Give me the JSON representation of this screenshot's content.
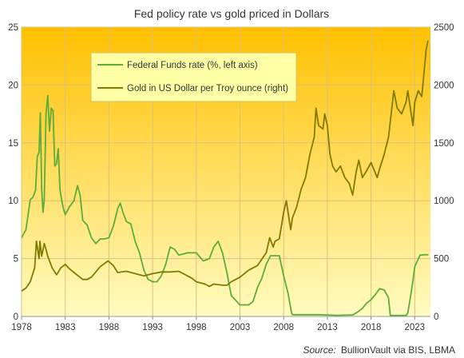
{
  "chart_data": {
    "type": "line",
    "title": "Fed policy rate vs gold priced in Dollars",
    "source_label": "Source:",
    "source_text": "BullionVault via  BIS, LBMA",
    "x_ticks": [
      "1978",
      "1983",
      "1988",
      "1993",
      "1998",
      "2003",
      "2008",
      "2013",
      "2018",
      "2023"
    ],
    "y_left_ticks": [
      "0",
      "5",
      "10",
      "15",
      "20",
      "25"
    ],
    "y_right_ticks": [
      "0",
      "500",
      "1000",
      "1500",
      "2000",
      "2500"
    ],
    "xlim": [
      1978,
      2024.8
    ],
    "ylim_left": [
      0,
      25
    ],
    "ylim_right": [
      0,
      2500
    ],
    "grid": true,
    "legend_position": "top-left",
    "background_gradient": [
      "#ffc000",
      "#fffbc0"
    ],
    "series": [
      {
        "name": "Federal Funds rate (%, left axis)",
        "axis": "left",
        "color": "#5cad3a",
        "x": [
          1978.0,
          1978.5,
          1979.0,
          1979.3,
          1979.6,
          1979.8,
          1980.0,
          1980.15,
          1980.3,
          1980.45,
          1980.6,
          1980.8,
          1981.0,
          1981.2,
          1981.4,
          1981.6,
          1981.8,
          1982.0,
          1982.2,
          1982.4,
          1982.6,
          1982.8,
          1983.0,
          1983.5,
          1984.0,
          1984.4,
          1984.7,
          1985.0,
          1985.5,
          1986.0,
          1986.5,
          1987.0,
          1987.5,
          1988.0,
          1988.5,
          1989.0,
          1989.3,
          1989.6,
          1990.0,
          1990.5,
          1991.0,
          1991.5,
          1992.0,
          1992.5,
          1993.0,
          1993.5,
          1994.0,
          1994.5,
          1995.0,
          1995.5,
          1996.0,
          1997.0,
          1998.0,
          1998.8,
          1999.5,
          2000.0,
          2000.5,
          2001.0,
          2001.5,
          2002.0,
          2003.0,
          2004.0,
          2004.5,
          2005.0,
          2005.5,
          2006.0,
          2006.5,
          2007.0,
          2007.5,
          2008.0,
          2008.5,
          2008.9,
          2009.0,
          2010.0,
          2012.0,
          2014.0,
          2015.9,
          2016.5,
          2017.0,
          2017.5,
          2018.0,
          2018.5,
          2019.0,
          2019.5,
          2020.0,
          2020.2,
          2021.0,
          2022.0,
          2022.2,
          2022.5,
          2022.8,
          2023.0,
          2023.3,
          2023.6,
          2024.0,
          2024.5
        ],
        "values": [
          6.8,
          7.5,
          10.1,
          10.3,
          10.9,
          13.8,
          14.2,
          17.6,
          11.0,
          9.0,
          10.0,
          17.5,
          19.1,
          16.0,
          18.0,
          17.8,
          13.0,
          13.2,
          14.5,
          11.0,
          10.0,
          9.3,
          8.8,
          9.5,
          10.0,
          11.3,
          10.5,
          8.3,
          7.9,
          6.8,
          6.3,
          6.7,
          6.7,
          6.8,
          7.8,
          9.3,
          9.8,
          9.0,
          8.2,
          8.0,
          6.5,
          5.5,
          4.0,
          3.2,
          3.0,
          3.0,
          3.5,
          4.5,
          6.0,
          5.8,
          5.3,
          5.5,
          5.5,
          4.8,
          5.0,
          6.0,
          6.5,
          5.5,
          3.8,
          1.8,
          1.0,
          1.0,
          1.3,
          2.5,
          3.3,
          4.5,
          5.25,
          5.25,
          5.25,
          3.5,
          2.0,
          0.3,
          0.15,
          0.15,
          0.15,
          0.1,
          0.13,
          0.4,
          0.7,
          1.15,
          1.45,
          1.9,
          2.4,
          2.3,
          1.6,
          0.1,
          0.08,
          0.08,
          0.3,
          1.6,
          3.1,
          4.3,
          4.8,
          5.3,
          5.33,
          5.33
        ]
      },
      {
        "name": "Gold in US Dollar per Troy ounce (right)",
        "axis": "right",
        "color": "#807a00",
        "x": [
          1978.0,
          1978.5,
          1979.0,
          1979.5,
          1979.7,
          1980.0,
          1980.1,
          1980.3,
          1980.6,
          1980.8,
          1981.0,
          1981.5,
          1982.0,
          1982.5,
          1983.0,
          1983.5,
          1984.0,
          1984.5,
          1985.0,
          1985.5,
          1986.0,
          1987.0,
          1987.9,
          1988.5,
          1989.0,
          1990.0,
          1991.0,
          1992.0,
          1993.0,
          1993.7,
          1994.0,
          1995.0,
          1996.0,
          1997.0,
          1997.5,
          1998.0,
          1999.0,
          1999.5,
          2000.0,
          2001.0,
          2001.5,
          2002.0,
          2003.0,
          2004.0,
          2005.0,
          2006.0,
          2006.4,
          2006.8,
          2007.0,
          2007.5,
          2008.0,
          2008.3,
          2008.8,
          2009.0,
          2009.5,
          2010.0,
          2010.5,
          2011.0,
          2011.5,
          2011.7,
          2012.0,
          2012.5,
          2012.7,
          2013.0,
          2013.3,
          2013.6,
          2014.0,
          2014.5,
          2015.0,
          2015.5,
          2015.9,
          2016.3,
          2016.6,
          2017.0,
          2017.5,
          2018.0,
          2018.7,
          2019.0,
          2019.5,
          2020.0,
          2020.6,
          2021.0,
          2021.5,
          2022.0,
          2022.2,
          2022.8,
          2023.0,
          2023.4,
          2023.8,
          2024.0,
          2024.3,
          2024.5
        ],
        "values": [
          220,
          245,
          300,
          420,
          650,
          500,
          650,
          520,
          630,
          580,
          520,
          420,
          360,
          420,
          450,
          410,
          380,
          350,
          320,
          320,
          340,
          430,
          480,
          440,
          380,
          390,
          370,
          350,
          370,
          380,
          385,
          385,
          390,
          350,
          330,
          300,
          280,
          260,
          280,
          270,
          270,
          300,
          340,
          400,
          440,
          550,
          680,
          600,
          650,
          670,
          900,
          1000,
          750,
          850,
          950,
          1100,
          1200,
          1400,
          1550,
          1800,
          1650,
          1620,
          1750,
          1650,
          1400,
          1300,
          1250,
          1300,
          1200,
          1150,
          1050,
          1250,
          1350,
          1200,
          1260,
          1330,
          1200,
          1280,
          1400,
          1550,
          1950,
          1800,
          1750,
          1850,
          1950,
          1650,
          1850,
          1950,
          1900,
          2050,
          2300,
          2380
        ]
      }
    ]
  }
}
